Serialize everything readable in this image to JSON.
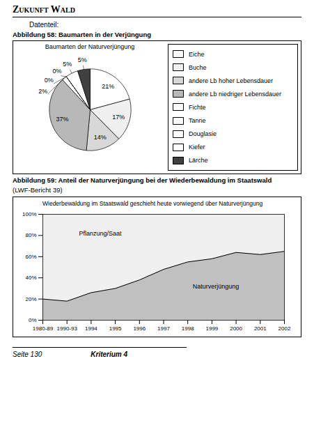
{
  "title": "Zukunft Wald",
  "subtitle": "Datenteil:",
  "footer": [
    "Seite 130",
    "Kriterium 4"
  ],
  "chart_data": [
    {
      "type": "pie",
      "caption": "Abbildung 58: Baumarten in der Verjüngung",
      "title": "Baumarten der Naturverjüngung",
      "categories": [
        "Eiche",
        "Buche",
        "andere Lb hoher Lebensdauer",
        "andere Lb niedriger Lebensdauer",
        "Fichte",
        "Tanne",
        "Douglasie",
        "Kiefer",
        "Lärche"
      ],
      "values": [
        21,
        17,
        14,
        37,
        2,
        0,
        0,
        5,
        5
      ],
      "value_labels": [
        "21%",
        "17%",
        "14%",
        "37%",
        "2%",
        "0%",
        "0%",
        "5%",
        "5%"
      ],
      "colors": [
        "#ffffff",
        "#f0f0f0",
        "#d8d8d8",
        "#b8b8b8",
        "#ffffff",
        "#ffffff",
        "#ffffff",
        "#ffffff",
        "#404040"
      ],
      "data_labels": true,
      "legend": "right"
    },
    {
      "type": "area",
      "caption": "Abbildung 59: Anteil der Naturverjüngung bei der Wiederbewaldung im Staatswald",
      "subtitle": "(LWF-Bericht 39)",
      "title": "Wiederbewaldung im Staatswald geschieht heute vorwiegend über Naturverjüngung",
      "categories": [
        "1980-89",
        "1990-93",
        "1994",
        "1995",
        "1996",
        "1997",
        "1998",
        "1999",
        "2000",
        "2001",
        "2002"
      ],
      "values": [
        20,
        18,
        26,
        30,
        38,
        48,
        55,
        58,
        64,
        62,
        65
      ],
      "color": "#c0c0c0",
      "ylim": [
        0,
        100
      ],
      "yticks": [
        {
          "value": 0,
          "label": "0%"
        },
        {
          "value": 20,
          "label": "20%"
        },
        {
          "value": 40,
          "label": "40%"
        },
        {
          "value": 60,
          "label": "60%"
        },
        {
          "value": 80,
          "label": "80%"
        },
        {
          "value": 100,
          "label": "100%"
        }
      ],
      "grid": false,
      "annotations": [
        "Pflanzung/Saat",
        "Naturverjüngung"
      ]
    }
  ]
}
